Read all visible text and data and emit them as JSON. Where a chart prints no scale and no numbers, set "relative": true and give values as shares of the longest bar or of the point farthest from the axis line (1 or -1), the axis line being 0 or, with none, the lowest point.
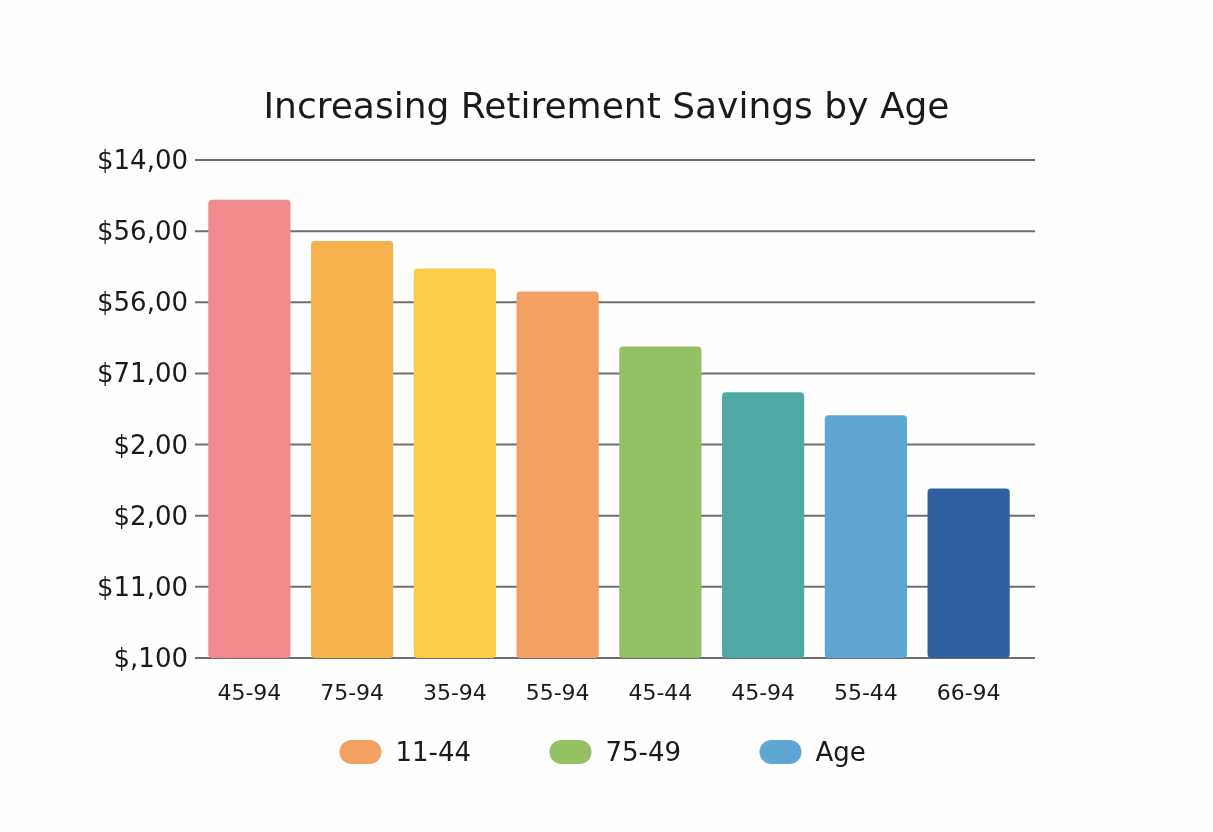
{
  "chart_data": {
    "type": "bar",
    "title": "Increasing Retirement Savings by Age",
    "categories": [
      "45-94",
      "75-94",
      "35-94",
      "55-94",
      "45-44",
      "45-94",
      "55-44",
      "66-94"
    ],
    "stacked": true,
    "relative": true,
    "series": [
      {
        "name": "11-44",
        "color": "#f3a064",
        "colors": [
          "#f08a8c",
          "#f6b24c",
          "#f9cd45",
          "#f3a064",
          null,
          null,
          null,
          null
        ],
        "values": [
          1,
          0.91,
          0.85,
          0.8,
          null,
          null,
          null,
          null
        ]
      },
      {
        "name": "75-49",
        "color": "#93c062",
        "colors": [
          null,
          null,
          null,
          null,
          "#93c062",
          null,
          null,
          null
        ],
        "values": [
          null,
          null,
          null,
          null,
          0.68,
          null,
          null,
          null
        ]
      },
      {
        "name": "Age",
        "color": "#5fa6d4",
        "colors": [
          null,
          null,
          null,
          null,
          null,
          "#4fa9a3",
          "#5fa6d4",
          "#2f5f9f"
        ],
        "values": [
          null,
          null,
          null,
          null,
          null,
          0.58,
          0.53,
          0.37
        ]
      }
    ],
    "annotations": [
      "$14,00",
      "$56,00",
      "$56,00",
      "$71,00",
      "$2,00",
      "$2,00",
      "$11,00",
      "$,100"
    ],
    "grid": true,
    "legend": "bottom"
  }
}
